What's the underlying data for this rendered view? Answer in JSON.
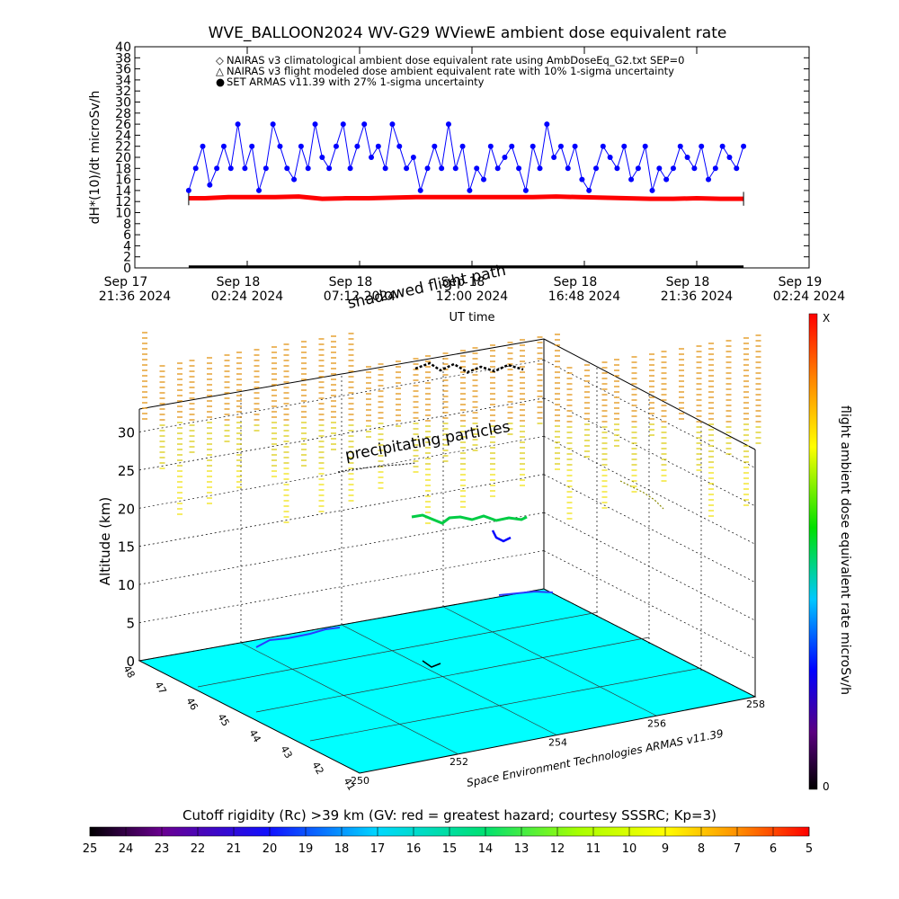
{
  "title": "WVE_BALLOON2024 WV-G29 WViewE ambient dose equivalent rate",
  "top_chart": {
    "ylabel": "dH*(10)/dt microSv/h",
    "xlabel": "UT time",
    "y_ticks": [
      "0",
      "2",
      "4",
      "6",
      "8",
      "10",
      "12",
      "14",
      "16",
      "18",
      "20",
      "22",
      "24",
      "26",
      "28",
      "30",
      "32",
      "34",
      "36",
      "38",
      "40"
    ],
    "x_ticks": [
      {
        "day": "Sep 17",
        "time": "21:36 2024"
      },
      {
        "day": "Sep 18",
        "time": "02:24 2024"
      },
      {
        "day": "Sep 18",
        "time": "07:12 2024"
      },
      {
        "day": "Sep 18",
        "time": "12:00 2024"
      },
      {
        "day": "Sep 18",
        "time": "16:48 2024"
      },
      {
        "day": "Sep 18",
        "time": "21:36 2024"
      },
      {
        "day": "Sep 19",
        "time": "02:24 2024"
      }
    ],
    "legend": [
      {
        "symbol": "◇",
        "text": "NAIRAS v3 climatological ambient dose equivalent rate using AmbDoseEq_G2.txt SEP=0"
      },
      {
        "symbol": "△",
        "text": "NAIRAS v3 flight modeled dose ambient equivalent rate with 10% 1-sigma uncertainty"
      },
      {
        "symbol": "●",
        "text": "SET ARMAS v11.39 with 27% 1-sigma uncertainty"
      }
    ]
  },
  "chart_data": [
    {
      "type": "line",
      "title": "WVE_BALLOON2024 WV-G29 WViewE ambient dose equivalent rate",
      "xlabel": "UT time",
      "ylabel": "dH*(10)/dt microSv/h",
      "x_unit": "hours since Sep 17 21:36 2024 UT",
      "xlim": [
        0,
        28.8
      ],
      "ylim": [
        0,
        40
      ],
      "series": [
        {
          "name": "NAIRAS v3 flight modeled dose ambient equivalent rate with 10% 1-sigma uncertainty",
          "color": "#ff0000",
          "x": [
            2.3,
            3.0,
            4.0,
            5.0,
            6.0,
            7.0,
            8.0,
            9.0,
            10.0,
            11.0,
            12.0,
            13.0,
            14.0,
            15.0,
            16.0,
            17.0,
            18.0,
            19.0,
            20.0,
            21.0,
            22.0,
            23.0,
            24.0,
            25.0,
            26.0
          ],
          "y": [
            12.6,
            12.6,
            12.8,
            12.8,
            12.8,
            12.9,
            12.5,
            12.6,
            12.6,
            12.7,
            12.8,
            12.8,
            12.8,
            12.8,
            12.8,
            12.8,
            12.9,
            12.8,
            12.7,
            12.6,
            12.5,
            12.5,
            12.6,
            12.5,
            12.5
          ]
        },
        {
          "name": "SET ARMAS v11.39 with 27% 1-sigma uncertainty",
          "color": "#0000ff",
          "x": [
            2.3,
            2.6,
            2.9,
            3.2,
            3.5,
            3.8,
            4.1,
            4.4,
            4.7,
            5.0,
            5.3,
            5.6,
            5.9,
            6.2,
            6.5,
            6.8,
            7.1,
            7.4,
            7.7,
            8.0,
            8.3,
            8.6,
            8.9,
            9.2,
            9.5,
            9.8,
            10.1,
            10.4,
            10.7,
            11.0,
            11.3,
            11.6,
            11.9,
            12.2,
            12.5,
            12.8,
            13.1,
            13.4,
            13.7,
            14.0,
            14.3,
            14.6,
            14.9,
            15.2,
            15.5,
            15.8,
            16.1,
            16.4,
            16.7,
            17.0,
            17.3,
            17.6,
            17.9,
            18.2,
            18.5,
            18.8,
            19.1,
            19.4,
            19.7,
            20.0,
            20.3,
            20.6,
            20.9,
            21.2,
            21.5,
            21.8,
            22.1,
            22.4,
            22.7,
            23.0,
            23.3,
            23.6,
            23.9,
            24.2,
            24.5,
            24.8,
            25.1,
            25.4,
            25.7,
            26.0
          ],
          "y": [
            14,
            18,
            22,
            15,
            18,
            22,
            18,
            26,
            18,
            22,
            14,
            18,
            26,
            22,
            18,
            16,
            22,
            18,
            26,
            20,
            18,
            22,
            26,
            18,
            22,
            26,
            20,
            22,
            18,
            26,
            22,
            18,
            20,
            14,
            18,
            22,
            18,
            26,
            18,
            22,
            14,
            18,
            16,
            22,
            18,
            20,
            22,
            18,
            14,
            22,
            18,
            26,
            20,
            22,
            18,
            22,
            16,
            14,
            18,
            22,
            20,
            18,
            22,
            16,
            18,
            22,
            14,
            18,
            16,
            18,
            22,
            20,
            18,
            22,
            16,
            18,
            22,
            20,
            18,
            22
          ]
        },
        {
          "name": "NAIRAS v3 climatological ambient dose equivalent rate using AmbDoseEq_G2.txt SEP=0",
          "color": "#000000",
          "x": [
            2.3,
            26.0
          ],
          "y": [
            0.2,
            0.2
          ]
        }
      ]
    },
    {
      "type": "heatmap",
      "title": "",
      "flight_path_label": "shadowed flight path",
      "annotation": "precipitating particles",
      "ylabel": "Altitude (km)",
      "altitude_ticks": [
        0,
        5,
        10,
        15,
        20,
        25,
        30
      ],
      "zlim": [
        0,
        33
      ],
      "lat_ticks": [
        "41",
        "42",
        "43",
        "44",
        "45",
        "46",
        "47",
        "48"
      ],
      "lon_ticks": [
        "250",
        "252",
        "254",
        "256",
        "258"
      ],
      "credit": "Space Environment Technologies ARMAS v11.39",
      "colorbar": {
        "label": "flight ambient dose equivalent rate microSv/h",
        "top": "X",
        "bottom": "0"
      }
    }
  ],
  "rigidity_bar": {
    "title": "Cutoff rigidity (Rc) >39 km (GV: red = greatest hazard; courtesy SSSRC; Kp=3)",
    "ticks": [
      "25",
      "24",
      "23",
      "22",
      "21",
      "20",
      "19",
      "18",
      "17",
      "16",
      "15",
      "14",
      "13",
      "12",
      "11",
      "10",
      "9",
      "8",
      "7",
      "6",
      "5"
    ]
  }
}
